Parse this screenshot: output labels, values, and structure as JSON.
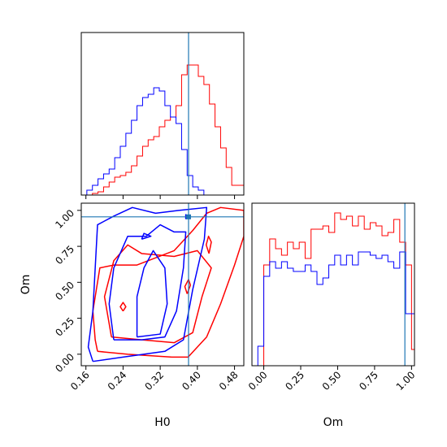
{
  "chart_data": [
    {
      "type": "histogram",
      "panel": "H0 marginal",
      "x_range": [
        0.15,
        0.5
      ],
      "truth": 0.381,
      "xticks": [
        0.16,
        0.24,
        0.32,
        0.4,
        0.48
      ],
      "bin_edges": [
        0.15,
        0.162,
        0.174,
        0.186,
        0.198,
        0.21,
        0.222,
        0.234,
        0.246,
        0.258,
        0.27,
        0.282,
        0.294,
        0.306,
        0.318,
        0.33,
        0.342,
        0.354,
        0.366,
        0.378,
        0.39,
        0.402,
        0.414,
        0.426,
        0.438,
        0.45,
        0.462,
        0.474,
        0.486,
        0.5
      ],
      "series": [
        {
          "color": "#ff0000",
          "counts": [
            0,
            0,
            0.01,
            0.02,
            0.05,
            0.08,
            0.11,
            0.12,
            0.14,
            0.18,
            0.24,
            0.3,
            0.34,
            0.36,
            0.42,
            0.46,
            0.48,
            0.55,
            0.74,
            0.8,
            0.8,
            0.73,
            0.68,
            0.56,
            0.42,
            0.29,
            0.17,
            0.06,
            0.06
          ]
        },
        {
          "color": "#0000ff",
          "counts": [
            0,
            0.03,
            0.06,
            0.1,
            0.13,
            0.16,
            0.23,
            0.3,
            0.38,
            0.46,
            0.55,
            0.6,
            0.62,
            0.66,
            0.64,
            0.55,
            0.48,
            0.44,
            0.28,
            0.12,
            0.05,
            0.03,
            0,
            0,
            0,
            0,
            0,
            0,
            0
          ]
        }
      ]
    },
    {
      "type": "contour",
      "panel": "H0 vs Om",
      "xlabel": "H0",
      "ylabel": "Om",
      "x_range": [
        0.15,
        0.5
      ],
      "y_range": [
        -0.08,
        1.05
      ],
      "xticks": [
        0.16,
        0.24,
        0.32,
        0.4,
        0.48
      ],
      "yticks": [
        0.0,
        0.25,
        0.5,
        0.75,
        1.0
      ],
      "truth": [
        0.381,
        0.955
      ],
      "series": [
        {
          "color": "#ff0000",
          "contours": [
            [
              [
                0.185,
                0.02
              ],
              [
                0.25,
                0.0
              ],
              [
                0.345,
                -0.02
              ],
              [
                0.38,
                -0.02
              ],
              [
                0.42,
                0.12
              ],
              [
                0.45,
                0.35
              ],
              [
                0.48,
                0.62
              ],
              [
                0.5,
                0.82
              ],
              [
                0.5,
                1.0
              ],
              [
                0.45,
                1.02
              ],
              [
                0.42,
                0.98
              ],
              [
                0.39,
                0.86
              ],
              [
                0.35,
                0.72
              ],
              [
                0.27,
                0.62
              ],
              [
                0.22,
                0.62
              ],
              [
                0.19,
                0.6
              ],
              [
                0.175,
                0.3
              ],
              [
                0.18,
                0.1
              ],
              [
                0.185,
                0.02
              ]
            ],
            [
              [
                0.215,
                0.12
              ],
              [
                0.28,
                0.1
              ],
              [
                0.35,
                0.08
              ],
              [
                0.39,
                0.15
              ],
              [
                0.41,
                0.4
              ],
              [
                0.43,
                0.6
              ],
              [
                0.4,
                0.72
              ],
              [
                0.35,
                0.68
              ],
              [
                0.28,
                0.7
              ],
              [
                0.25,
                0.76
              ],
              [
                0.22,
                0.65
              ],
              [
                0.2,
                0.4
              ],
              [
                0.215,
                0.12
              ]
            ],
            [
              [
                0.378,
                0.42
              ],
              [
                0.385,
                0.48
              ],
              [
                0.381,
                0.52
              ],
              [
                0.373,
                0.47
              ],
              [
                0.378,
                0.42
              ]
            ],
            [
              [
                0.24,
                0.3
              ],
              [
                0.246,
                0.33
              ],
              [
                0.24,
                0.36
              ],
              [
                0.234,
                0.33
              ],
              [
                0.24,
                0.3
              ]
            ],
            [
              [
                0.425,
                0.7
              ],
              [
                0.43,
                0.78
              ],
              [
                0.424,
                0.82
              ],
              [
                0.419,
                0.76
              ],
              [
                0.425,
                0.7
              ]
            ]
          ]
        },
        {
          "color": "#0000ff",
          "contours": [
            [
              [
                0.175,
                -0.05
              ],
              [
                0.24,
                -0.02
              ],
              [
                0.33,
                0.02
              ],
              [
                0.37,
                0.1
              ],
              [
                0.39,
                0.45
              ],
              [
                0.415,
                0.8
              ],
              [
                0.42,
                1.02
              ],
              [
                0.36,
                1.0
              ],
              [
                0.31,
                0.98
              ],
              [
                0.26,
                1.02
              ],
              [
                0.22,
                0.96
              ],
              [
                0.185,
                0.9
              ],
              [
                0.18,
                0.6
              ],
              [
                0.175,
                0.3
              ],
              [
                0.165,
                0.05
              ],
              [
                0.175,
                -0.05
              ]
            ],
            [
              [
                0.22,
                0.1
              ],
              [
                0.28,
                0.1
              ],
              [
                0.33,
                0.12
              ],
              [
                0.355,
                0.3
              ],
              [
                0.37,
                0.6
              ],
              [
                0.375,
                0.85
              ],
              [
                0.35,
                0.85
              ],
              [
                0.32,
                0.9
              ],
              [
                0.29,
                0.82
              ],
              [
                0.25,
                0.82
              ],
              [
                0.22,
                0.6
              ],
              [
                0.21,
                0.35
              ],
              [
                0.22,
                0.1
              ]
            ],
            [
              [
                0.27,
                0.12
              ],
              [
                0.32,
                0.14
              ],
              [
                0.335,
                0.35
              ],
              [
                0.33,
                0.6
              ],
              [
                0.305,
                0.72
              ],
              [
                0.285,
                0.6
              ],
              [
                0.27,
                0.4
              ],
              [
                0.27,
                0.12
              ]
            ],
            [
              [
                0.28,
                0.8
              ],
              [
                0.3,
                0.82
              ],
              [
                0.285,
                0.84
              ],
              [
                0.28,
                0.8
              ]
            ],
            [
              [
                0.375,
                0.94
              ],
              [
                0.385,
                0.96
              ],
              [
                0.375,
                0.97
              ],
              [
                0.375,
                0.94
              ]
            ]
          ]
        }
      ]
    },
    {
      "type": "histogram",
      "panel": "Om marginal",
      "xlabel": "Om",
      "x_range": [
        -0.08,
        1.02
      ],
      "truth": 0.955,
      "xticks": [
        0.0,
        0.25,
        0.5,
        0.75,
        1.0
      ],
      "bin_edges": [
        -0.08,
        -0.04,
        0.0,
        0.04,
        0.08,
        0.12,
        0.16,
        0.2,
        0.24,
        0.28,
        0.32,
        0.36,
        0.4,
        0.44,
        0.48,
        0.52,
        0.56,
        0.6,
        0.64,
        0.68,
        0.72,
        0.76,
        0.8,
        0.84,
        0.88,
        0.92,
        0.96,
        1.0,
        1.02
      ],
      "series": [
        {
          "color": "#ff0000",
          "counts": [
            0,
            0,
            0.62,
            0.78,
            0.72,
            0.68,
            0.76,
            0.72,
            0.76,
            0.66,
            0.84,
            0.84,
            0.86,
            0.82,
            0.94,
            0.9,
            0.92,
            0.86,
            0.92,
            0.84,
            0.88,
            0.86,
            0.8,
            0.82,
            0.9,
            0.76,
            0.62,
            0.1
          ]
        },
        {
          "color": "#0000ff",
          "counts": [
            0,
            0.12,
            0.55,
            0.64,
            0.6,
            0.64,
            0.6,
            0.58,
            0.58,
            0.62,
            0.58,
            0.5,
            0.54,
            0.62,
            0.68,
            0.62,
            0.68,
            0.62,
            0.7,
            0.7,
            0.68,
            0.66,
            0.68,
            0.64,
            0.6,
            0.7,
            0.32,
            0.32
          ]
        }
      ]
    }
  ]
}
